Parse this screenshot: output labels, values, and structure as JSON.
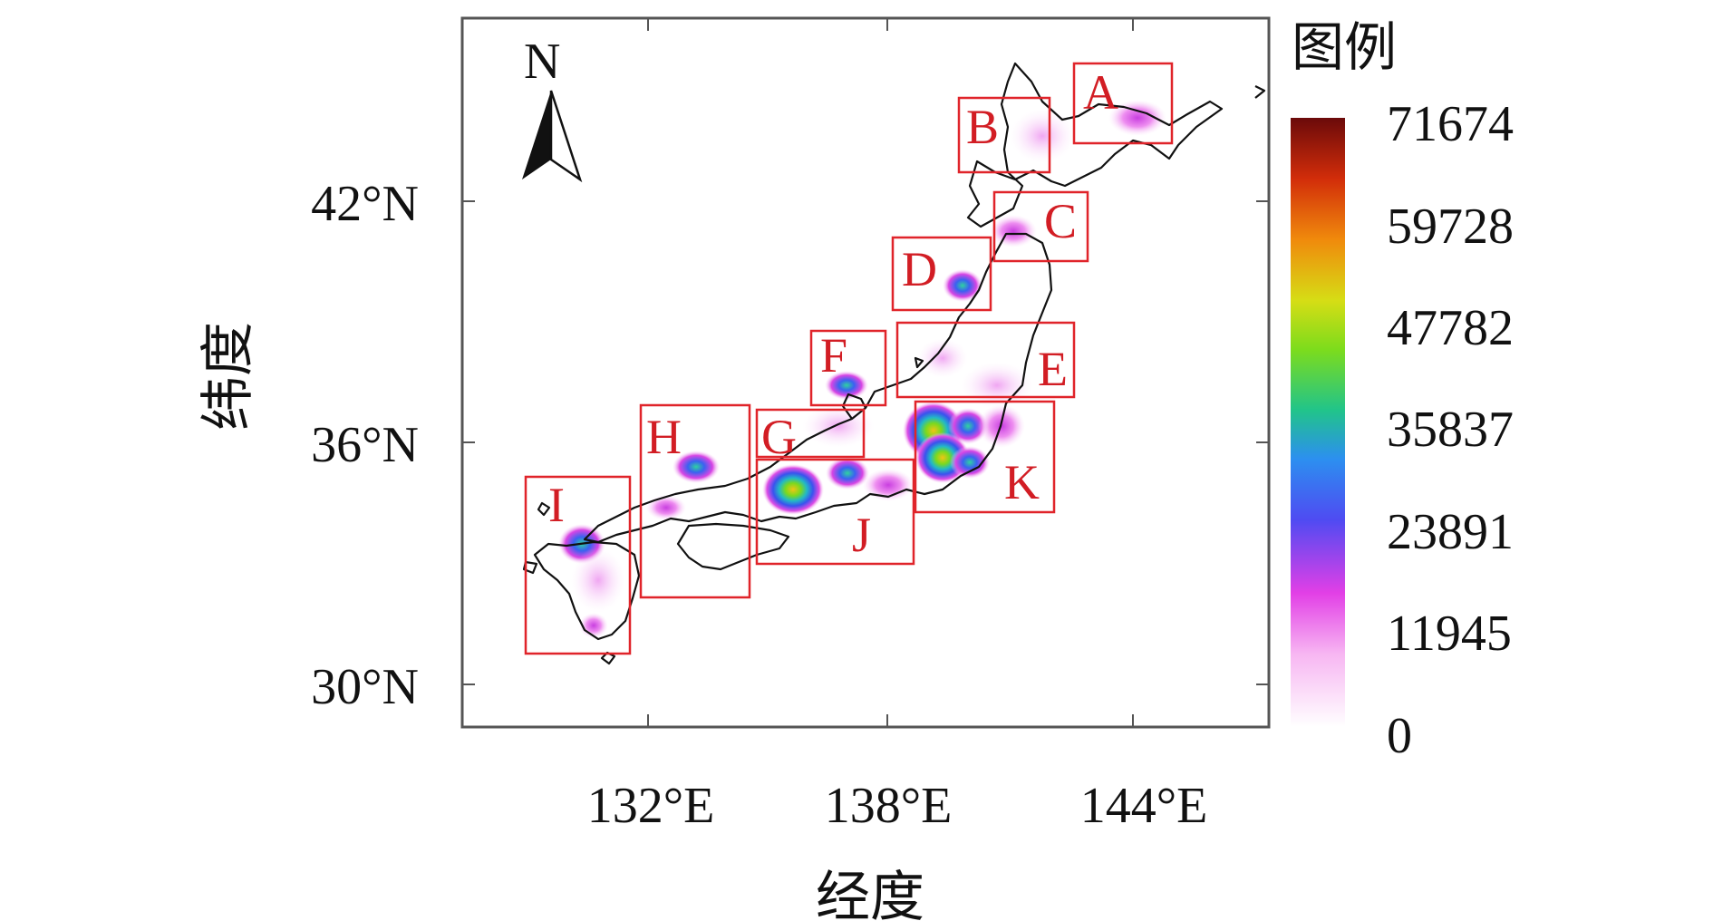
{
  "map": {
    "north_label": "N",
    "legend_title": "图例",
    "xlabel": "经度",
    "ylabel": "纬度",
    "lon_ticks": [
      "132°E",
      "138°E",
      "144°E"
    ],
    "lat_ticks": [
      "42°N",
      "36°N",
      "30°N"
    ],
    "legend_values": [
      "71674",
      "59728",
      "47782",
      "35837",
      "23891",
      "11945",
      "0"
    ],
    "region_labels": [
      "A",
      "B",
      "C",
      "D",
      "E",
      "F",
      "G",
      "H",
      "I",
      "J",
      "K"
    ],
    "colors": {
      "box": "#e0242a",
      "label": "#d21d24",
      "frame": "#555555",
      "coast": "#111111"
    }
  },
  "chart_data": {
    "type": "heatmap",
    "xlabel": "经度",
    "ylabel": "纬度",
    "x_ticks": [
      "132°E",
      "138°E",
      "144°E"
    ],
    "y_ticks": [
      "42°N",
      "36°N",
      "30°N"
    ],
    "colorbar": {
      "min": 0,
      "max": 71674,
      "ticks": [
        0,
        11945,
        23891,
        35837,
        47782,
        59728,
        71674
      ]
    },
    "regions": [
      "A",
      "B",
      "C",
      "D",
      "E",
      "F",
      "G",
      "H",
      "I",
      "J",
      "K"
    ]
  }
}
